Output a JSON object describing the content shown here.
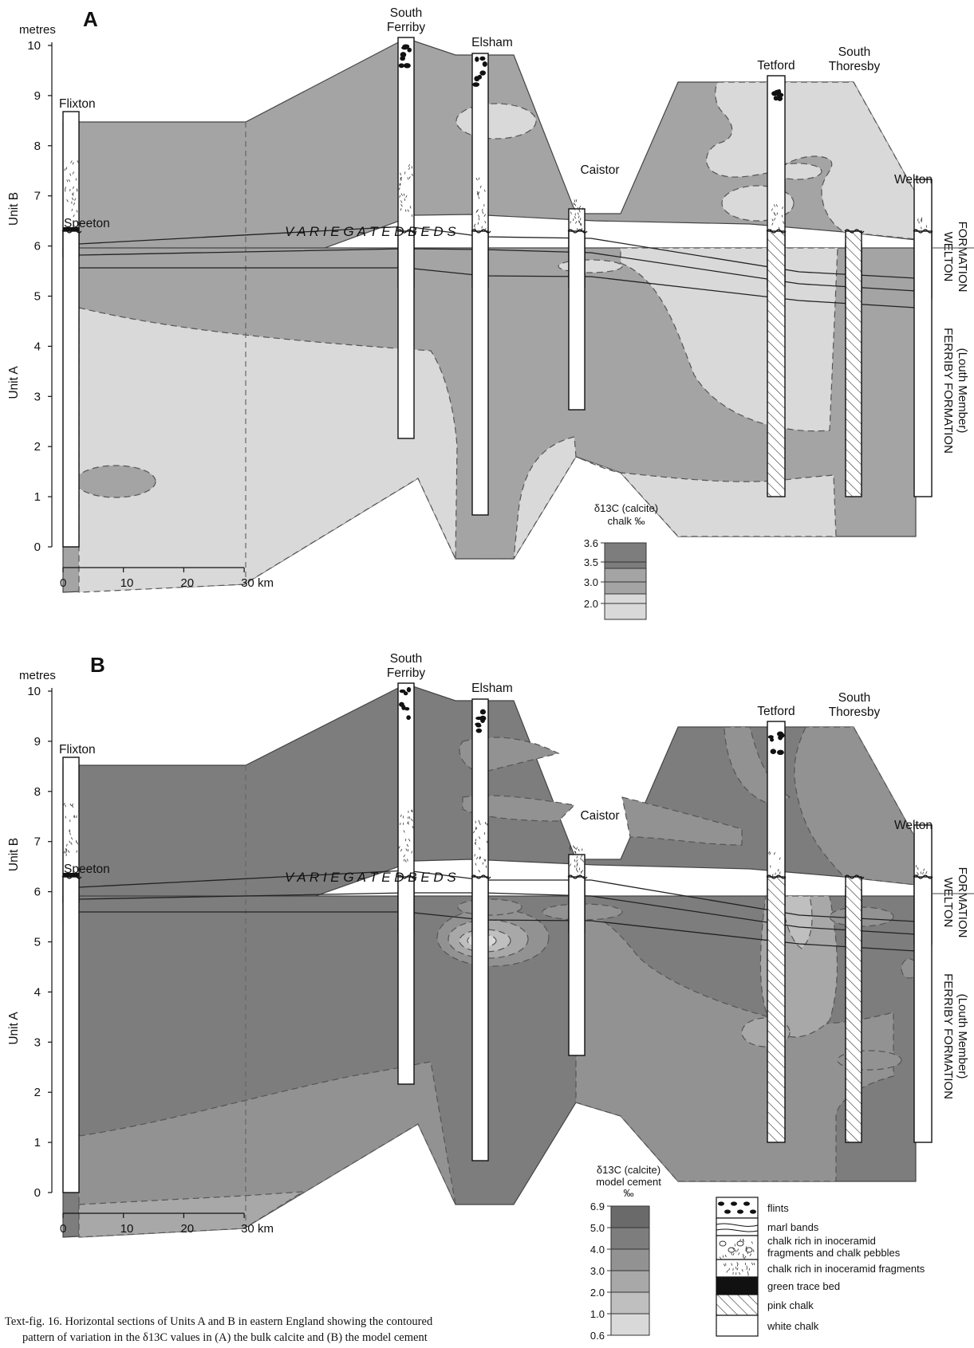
{
  "panels": [
    {
      "letter": "A",
      "y_unit": "metres",
      "y_ticks": [
        "0",
        "1",
        "2",
        "3",
        "4",
        "5",
        "6",
        "7",
        "8",
        "9",
        "10"
      ],
      "x_ticks": [
        "0",
        "10",
        "20",
        "30 km"
      ],
      "legend": {
        "title_lines": [
          "δ13C (calcite)",
          "chalk ‰"
        ],
        "ticks": [
          "3.6",
          "3.5",
          "3.0",
          "2.0"
        ],
        "colors": [
          "#7d7d7d",
          "#a4a4a4",
          "#d9d9d9"
        ]
      }
    },
    {
      "letter": "B",
      "y_unit": "metres",
      "y_ticks": [
        "0",
        "1",
        "2",
        "3",
        "4",
        "5",
        "6",
        "7",
        "8",
        "9",
        "10"
      ],
      "x_ticks": [
        "0",
        "10",
        "20",
        "30 km"
      ],
      "legend": {
        "title_lines": [
          "δ13C (calcite)",
          "model cement",
          "‰"
        ],
        "ticks": [
          "6.9",
          "5.0",
          "4.0",
          "3.0",
          "2.0",
          "1.0",
          "0.6"
        ],
        "colors": [
          "#6a6a6a",
          "#7d7d7d",
          "#929292",
          "#a8a8a8",
          "#bfbfbf",
          "#d9d9d9"
        ]
      }
    }
  ],
  "localities": {
    "flixton": "Flixton",
    "speeton": "Speeton",
    "south_ferriby": [
      "South",
      "Ferriby"
    ],
    "elsham": "Elsham",
    "caistor": "Caistor",
    "tetford": "Tetford",
    "south_thoresby": [
      "South",
      "Thoresby"
    ],
    "welton": "Welton"
  },
  "units": {
    "unit_b": "Unit B",
    "unit_a": "Unit A"
  },
  "variegated_beds": "V A R I E G A T E D   B E D S",
  "formations": {
    "welton": [
      "WELTON",
      "FORMATION"
    ],
    "ferriby": [
      "FERRIBY FORMATION",
      "(Louth Member)"
    ]
  },
  "lithology_legend": [
    {
      "label": "flints",
      "pattern": "flints"
    },
    {
      "label": "marl bands",
      "pattern": "marl"
    },
    {
      "label": "chalk rich in inoceramid fragments and chalk pebbles",
      "pattern": "pebbles",
      "lines": [
        "chalk rich in inoceramid",
        "fragments and chalk pebbles"
      ]
    },
    {
      "label": "chalk rich in inoceramid fragments",
      "pattern": "dashes",
      "lines": [
        "chalk rich in inoceramid fragments"
      ]
    },
    {
      "label": "green trace bed",
      "pattern": "black"
    },
    {
      "label": "pink chalk",
      "pattern": "hatch"
    },
    {
      "label": "white chalk",
      "pattern": "white"
    }
  ],
  "caption": {
    "line1": "Text-fig. 16.  Horizontal sections of Units A and B in eastern England showing the contoured",
    "line2": "pattern of variation in the δ13C values in (A) the bulk calcite and (B) the model cement"
  }
}
